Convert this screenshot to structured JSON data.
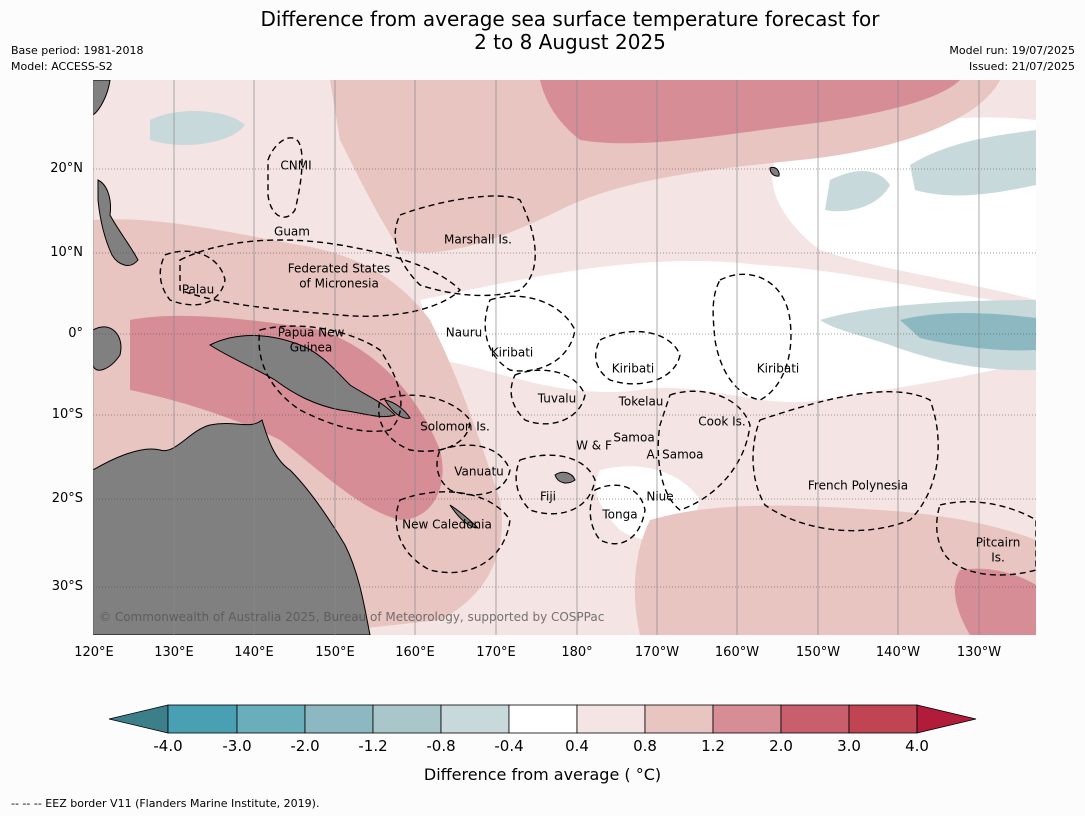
{
  "title": {
    "line1": "Difference from average sea surface temperature forecast for",
    "line2": "2 to 8 August 2025"
  },
  "info_left": {
    "base_period": "Base period: 1981-2018",
    "model": "Model: ACCESS-S2"
  },
  "info_right": {
    "model_run": "Model run: 19/07/2025",
    "issued": "Issued: 21/07/2025"
  },
  "axes": {
    "lat_labels": [
      "20°N",
      "10°N",
      "0°",
      "10°S",
      "20°S",
      "30°S"
    ],
    "lon_labels": [
      "120°E",
      "130°E",
      "140°E",
      "150°E",
      "160°E",
      "170°E",
      "180°",
      "170°W",
      "160°W",
      "150°W",
      "140°W",
      "130°W"
    ]
  },
  "places": [
    {
      "id": "cnmi",
      "text": "CNMI"
    },
    {
      "id": "guam",
      "text": "Guam"
    },
    {
      "id": "marshall",
      "text": "Marshall Is."
    },
    {
      "id": "fsm1",
      "text": "Federated States"
    },
    {
      "id": "fsm2",
      "text": "of Micronesia"
    },
    {
      "id": "palau",
      "text": "Palau"
    },
    {
      "id": "nauru",
      "text": "Nauru"
    },
    {
      "id": "png1",
      "text": "Papua New"
    },
    {
      "id": "png2",
      "text": "Guinea"
    },
    {
      "id": "kiribati1",
      "text": "Kiribati"
    },
    {
      "id": "kiribati2",
      "text": "Kiribati"
    },
    {
      "id": "kiribati3",
      "text": "Kiribati"
    },
    {
      "id": "tuvalu",
      "text": "Tuvalu"
    },
    {
      "id": "tokelau",
      "text": "Tokelau"
    },
    {
      "id": "cook",
      "text": "Cook Is."
    },
    {
      "id": "solomon",
      "text": "Solomon Is."
    },
    {
      "id": "samoa",
      "text": "Samoa"
    },
    {
      "id": "wf",
      "text": "W & F"
    },
    {
      "id": "asamoa",
      "text": "A. Samoa"
    },
    {
      "id": "vanuatu",
      "text": "Vanuatu"
    },
    {
      "id": "fiji",
      "text": "Fiji"
    },
    {
      "id": "niue",
      "text": "Niue"
    },
    {
      "id": "tonga",
      "text": "Tonga"
    },
    {
      "id": "frpoly",
      "text": "French Polynesia"
    },
    {
      "id": "newcal",
      "text": "New Caledonia"
    },
    {
      "id": "pitcairn1",
      "text": "Pitcairn"
    },
    {
      "id": "pitcairn2",
      "text": "Is."
    }
  ],
  "copyright": "© Commonwealth of Australia 2025, Bureau of Meteorology, supported by COSPPac",
  "colorbar": {
    "ticks": [
      "-4.0",
      "-3.0",
      "-2.0",
      "-1.2",
      "-0.8",
      "-0.4",
      "0.4",
      "0.8",
      "1.2",
      "2.0",
      "3.0",
      "4.0"
    ],
    "colors": [
      "#3c7f8b",
      "#4aa0b3",
      "#6aadbb",
      "#8cb8c2",
      "#a9c6cb",
      "#c8d9dc",
      "#ffffff",
      "#f4e4e3",
      "#e8c5c1",
      "#d68d96",
      "#c95f6d",
      "#c04452",
      "#b11c3a"
    ],
    "label": "Difference from average ( °C)"
  },
  "footer": "--  --  -- EEZ border V11 (Flanders Marine Institute, 2019)."
}
